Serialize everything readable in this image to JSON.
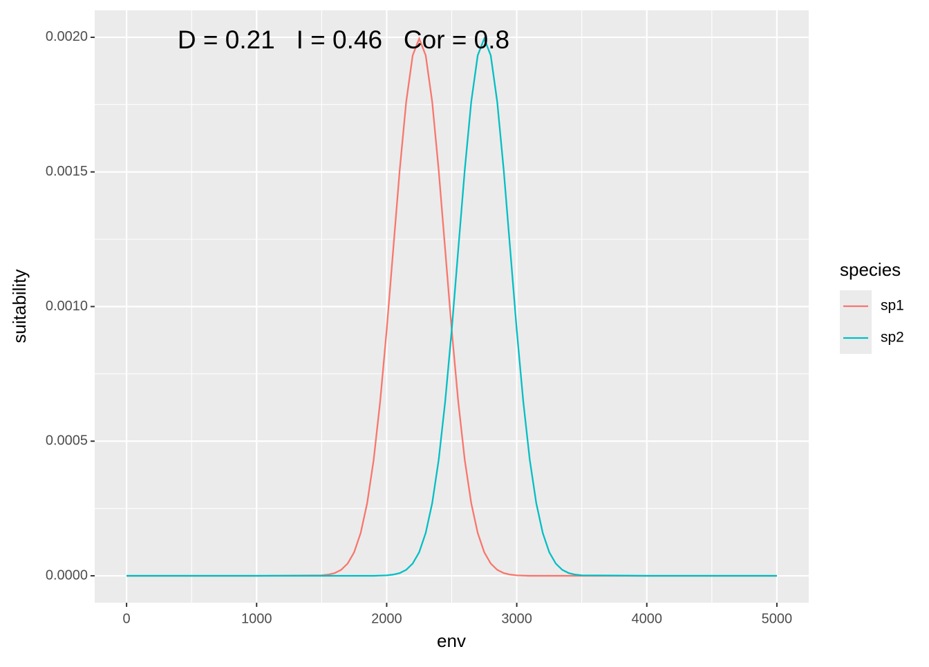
{
  "chart_data": {
    "type": "line",
    "annotation": "D = 0.21   I = 0.46   Cor = 0.8",
    "x_label": "env",
    "y_label": "suitability",
    "legend_title": "species",
    "legend_position": "right",
    "grid": true,
    "xlim": [
      -245,
      5245
    ],
    "ylim": [
      -0.0001,
      0.0021
    ],
    "xticks": [
      0,
      1000,
      2000,
      3000,
      4000,
      5000
    ],
    "yticks": [
      {
        "value": 0,
        "label": "0.0000"
      },
      {
        "value": 0.0005,
        "label": "0.0005"
      },
      {
        "value": 0.001,
        "label": "0.0010"
      },
      {
        "value": 0.0015,
        "label": "0.0015"
      },
      {
        "value": 0.002,
        "label": "0.0020"
      }
    ],
    "x": [
      0,
      500,
      1000,
      1500,
      1550,
      1600,
      1650,
      1700,
      1750,
      1800,
      1850,
      1900,
      1950,
      2000,
      2050,
      2100,
      2150,
      2200,
      2250,
      2300,
      2350,
      2400,
      2450,
      2500,
      2550,
      2600,
      2650,
      2700,
      2750,
      2800,
      2850,
      2900,
      2950,
      3000,
      3050,
      3100,
      3150,
      3200,
      3250,
      3300,
      3350,
      3400,
      3450,
      3500,
      4000,
      4500,
      5000
    ],
    "series": [
      {
        "name": "sp1",
        "color": "#F8766D",
        "values": [
          0,
          0,
          0,
          1.8e-06,
          4.4e-06,
          1.01e-05,
          2.22e-05,
          4.55e-05,
          8.76e-05,
          0.000159,
          0.00027,
          0.000431,
          0.000648,
          0.000913,
          0.00121,
          0.001506,
          0.00176,
          0.001933,
          0.001995,
          0.001933,
          0.00176,
          0.001506,
          0.00121,
          0.000913,
          0.000648,
          0.000431,
          0.00027,
          0.000159,
          8.76e-05,
          4.55e-05,
          2.22e-05,
          1.01e-05,
          4.4e-06,
          1.8e-06,
          7e-07,
          0,
          0,
          0,
          0,
          0,
          0,
          0,
          0,
          0,
          0,
          0,
          0
        ]
      },
      {
        "name": "sp2",
        "color": "#00BFC4",
        "values": [
          0,
          0,
          0,
          0,
          0,
          0,
          0,
          0,
          0,
          0,
          0,
          0,
          7e-07,
          1.8e-06,
          4.4e-06,
          1.01e-05,
          2.22e-05,
          4.55e-05,
          8.76e-05,
          0.000159,
          0.00027,
          0.000431,
          0.000648,
          0.000913,
          0.00121,
          0.001506,
          0.00176,
          0.001933,
          0.001995,
          0.001933,
          0.00176,
          0.001506,
          0.00121,
          0.000913,
          0.000648,
          0.000431,
          0.00027,
          0.000159,
          8.76e-05,
          4.55e-05,
          2.22e-05,
          1.01e-05,
          4.4e-06,
          1.8e-06,
          0,
          0,
          0
        ]
      }
    ]
  }
}
